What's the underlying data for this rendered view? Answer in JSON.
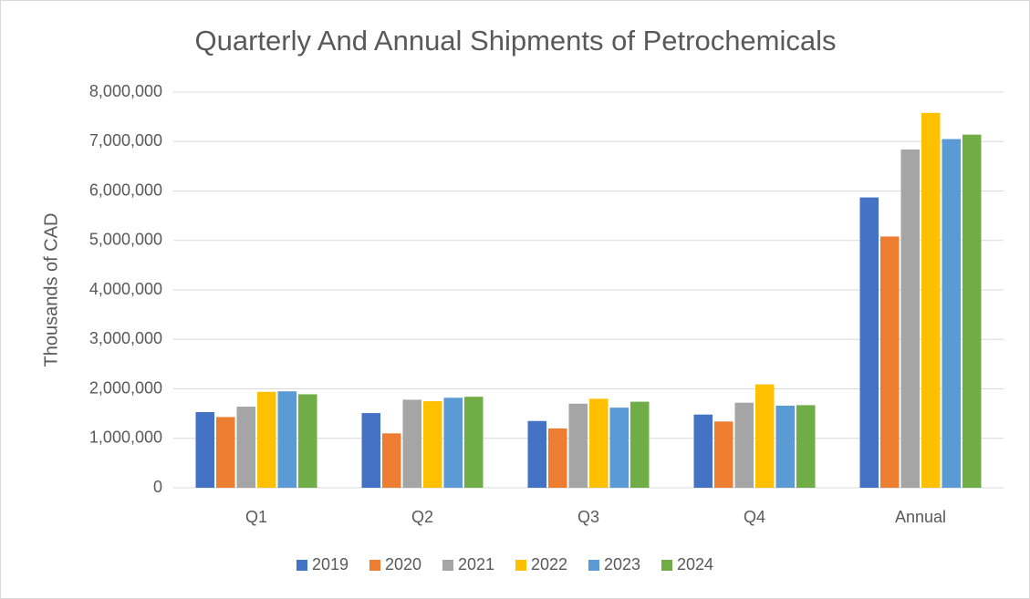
{
  "chart_data": {
    "type": "bar",
    "title": "Quarterly And Annual Shipments of Petrochemicals",
    "y_label": "Thousands of CAD",
    "categories": [
      "Q1",
      "Q2",
      "Q3",
      "Q4",
      "Annual"
    ],
    "series": [
      {
        "name": "2019",
        "color": "#4472c4",
        "values": [
          1530000,
          1510000,
          1350000,
          1480000,
          5870000
        ]
      },
      {
        "name": "2020",
        "color": "#ed7d31",
        "values": [
          1430000,
          1100000,
          1200000,
          1340000,
          5080000
        ]
      },
      {
        "name": "2021",
        "color": "#a5a5a5",
        "values": [
          1640000,
          1780000,
          1700000,
          1720000,
          6840000
        ]
      },
      {
        "name": "2022",
        "color": "#ffc000",
        "values": [
          1940000,
          1750000,
          1800000,
          2090000,
          7580000
        ]
      },
      {
        "name": "2023",
        "color": "#5b9bd5",
        "values": [
          1950000,
          1820000,
          1620000,
          1660000,
          7050000
        ]
      },
      {
        "name": "2024",
        "color": "#70ad47",
        "values": [
          1890000,
          1840000,
          1740000,
          1670000,
          7140000
        ]
      }
    ],
    "ylim": [
      0,
      8000000
    ],
    "yticks": [
      0,
      {
        "value": 1000000,
        "label": "1,000,000"
      },
      {
        "value": 2000000,
        "label": "2,000,000"
      },
      {
        "value": 3000000,
        "label": "3,000,000"
      },
      {
        "value": 4000000,
        "label": "4,000,000"
      },
      {
        "value": 5000000,
        "label": "5,000,000"
      },
      {
        "value": 6000000,
        "label": "6,000,000"
      },
      {
        "value": 7000000,
        "label": "7,000,000"
      },
      {
        "value": 8000000,
        "label": "8,000,000"
      }
    ],
    "grid": true,
    "legend": "bottom"
  }
}
